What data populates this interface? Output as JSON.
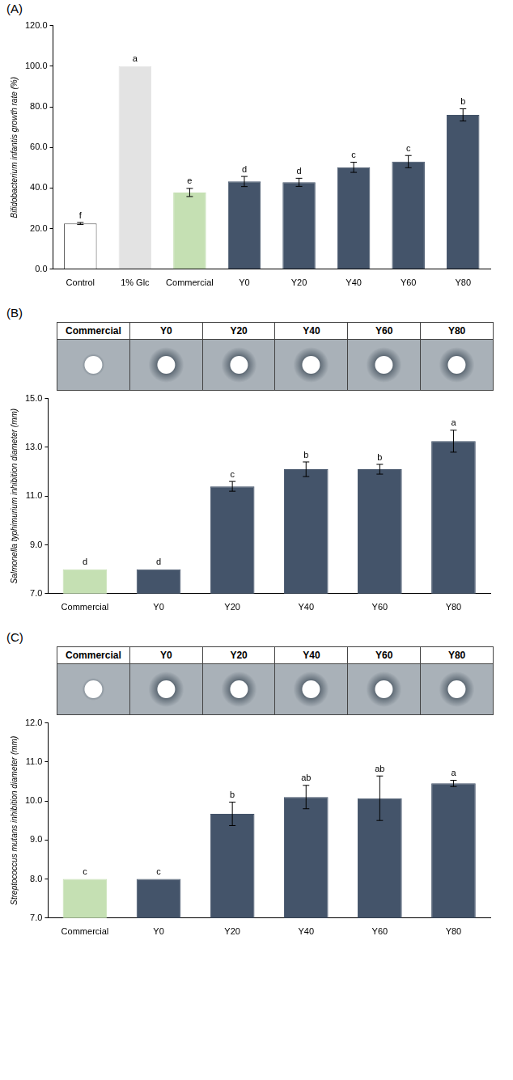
{
  "chart_data": [
    {
      "panel_label": "(A)",
      "type": "bar",
      "y_label": "Bifidobacterium infantis growth rate (%)",
      "categories": [
        "Control",
        "1% Glc",
        "Commercial",
        "Y0",
        "Y20",
        "Y40",
        "Y60",
        "Y80"
      ],
      "values": [
        22.5,
        100.0,
        37.8,
        43.2,
        42.8,
        50.2,
        53.0,
        76.0
      ],
      "errors": [
        0.5,
        0.0,
        2.0,
        2.5,
        2.0,
        2.5,
        3.0,
        3.0
      ],
      "significance": [
        "f",
        "a",
        "e",
        "d",
        "d",
        "c",
        "c",
        "b"
      ],
      "colors": [
        "#ffffff",
        "#e3e3e3",
        "#c5e0b3",
        "#44546a",
        "#44546a",
        "#44546a",
        "#44546a",
        "#44546a"
      ],
      "ylim": [
        0,
        120
      ],
      "yticks": [
        {
          "value": 0,
          "label": "0.0"
        },
        {
          "value": 20,
          "label": "20.0"
        },
        {
          "value": 40,
          "label": "40.0"
        },
        {
          "value": 60,
          "label": "60.0"
        },
        {
          "value": 80,
          "label": "80.0"
        },
        {
          "value": 100,
          "label": "100.0"
        },
        {
          "value": 120,
          "label": "120.0"
        }
      ],
      "grid": false
    },
    {
      "panel_label": "(B)",
      "type": "bar",
      "image_labels": [
        "Commercial",
        "Y0",
        "Y20",
        "Y40",
        "Y60",
        "Y80"
      ],
      "y_label": "Salmonella typhimurium inhibition diameter (mm)",
      "categories": [
        "Commercial",
        "Y0",
        "Y20",
        "Y40",
        "Y60",
        "Y80"
      ],
      "values": [
        8.0,
        8.0,
        11.4,
        12.1,
        12.1,
        13.25
      ],
      "errors": [
        0.0,
        0.0,
        0.2,
        0.3,
        0.2,
        0.45
      ],
      "significance": [
        "d",
        "d",
        "c",
        "b",
        "b",
        "a"
      ],
      "colors": [
        "#c5e0b3",
        "#44546a",
        "#44546a",
        "#44546a",
        "#44546a",
        "#44546a"
      ],
      "ylim": [
        7,
        15
      ],
      "yticks": [
        {
          "value": 7,
          "label": "7.0"
        },
        {
          "value": 9,
          "label": "9.0"
        },
        {
          "value": 11,
          "label": "11.0"
        },
        {
          "value": 13,
          "label": "13.0"
        },
        {
          "value": 15,
          "label": "15.0"
        }
      ],
      "grid": false
    },
    {
      "panel_label": "(C)",
      "type": "bar",
      "image_labels": [
        "Commercial",
        "Y0",
        "Y20",
        "Y40",
        "Y60",
        "Y80"
      ],
      "y_label": "Streptococcus mutans inhibition diameter (mm)",
      "categories": [
        "Commercial",
        "Y0",
        "Y20",
        "Y40",
        "Y60",
        "Y80"
      ],
      "values": [
        8.0,
        8.0,
        9.67,
        10.1,
        10.07,
        10.45
      ],
      "errors": [
        0.0,
        0.0,
        0.3,
        0.3,
        0.57,
        0.08
      ],
      "significance": [
        "c",
        "c",
        "b",
        "ab",
        "ab",
        "a"
      ],
      "colors": [
        "#c5e0b3",
        "#44546a",
        "#44546a",
        "#44546a",
        "#44546a",
        "#44546a"
      ],
      "ylim": [
        7,
        12
      ],
      "yticks": [
        {
          "value": 7,
          "label": "7.0"
        },
        {
          "value": 8,
          "label": "8.0"
        },
        {
          "value": 9,
          "label": "9.0"
        },
        {
          "value": 10,
          "label": "10.0"
        },
        {
          "value": 11,
          "label": "11.0"
        },
        {
          "value": 12,
          "label": "12.0"
        }
      ],
      "grid": false
    }
  ]
}
